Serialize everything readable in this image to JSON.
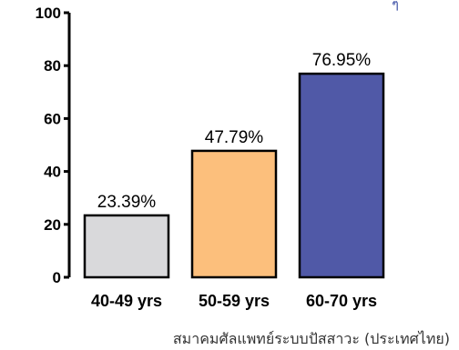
{
  "chart_data": {
    "type": "bar",
    "categories": [
      "40-49 yrs",
      "50-59 yrs",
      "60-70 yrs"
    ],
    "values": [
      23.39,
      47.79,
      76.95
    ],
    "data_labels": [
      "23.39%",
      "47.79%",
      "76.95%"
    ],
    "bar_colors": [
      "#d9d9db",
      "#fcbf7c",
      "#5059a7"
    ],
    "ylim": [
      0,
      100
    ],
    "yticks": [
      0,
      20,
      40,
      60,
      80,
      100
    ],
    "ytick_labels": [
      "0",
      "20",
      "40",
      "60",
      "80",
      "100"
    ],
    "title": "",
    "xlabel": "",
    "ylabel": "",
    "grid": false
  },
  "source_text": "สมาคมศัลแพทย์ระบบปัสสาวะ (ประเทศไทย)",
  "corner_mark": "ๆ"
}
